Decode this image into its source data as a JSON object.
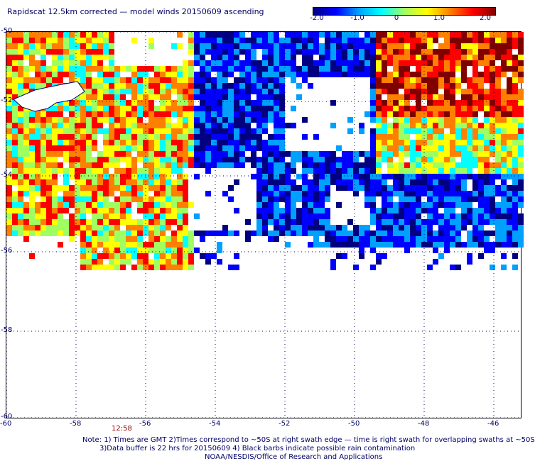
{
  "title": "Rapidscat 12.5km corrected — model winds 20150609 ascending",
  "colorbar": {
    "stops": [
      "#000080",
      "#0000ff",
      "#00a0ff",
      "#00ffff",
      "#a0ff60",
      "#ffff00",
      "#ff8000",
      "#ff0000",
      "#800000"
    ],
    "labels": [
      "-2.0",
      "-1.0",
      "0",
      "1.0",
      "2.0"
    ]
  },
  "lat_labels": [
    "-50",
    "-52",
    "-54",
    "-56",
    "-58",
    "-60"
  ],
  "lon_labels": [
    "-60",
    "-58",
    "-56",
    "-54",
    "-52",
    "-50",
    "-48",
    "-46"
  ],
  "time_label": "12:58",
  "notes": [
    "Note: 1) Times are GMT 2)Times correspond to ~50S at right swath edge — time is right swath for overlapping swaths at ~50S",
    "3)Data buffer is 22 hrs for 20150609 4) Black barbs indicate possible rain contamination",
    "NOAA/NESDIS/Office of Research and Applications"
  ]
}
